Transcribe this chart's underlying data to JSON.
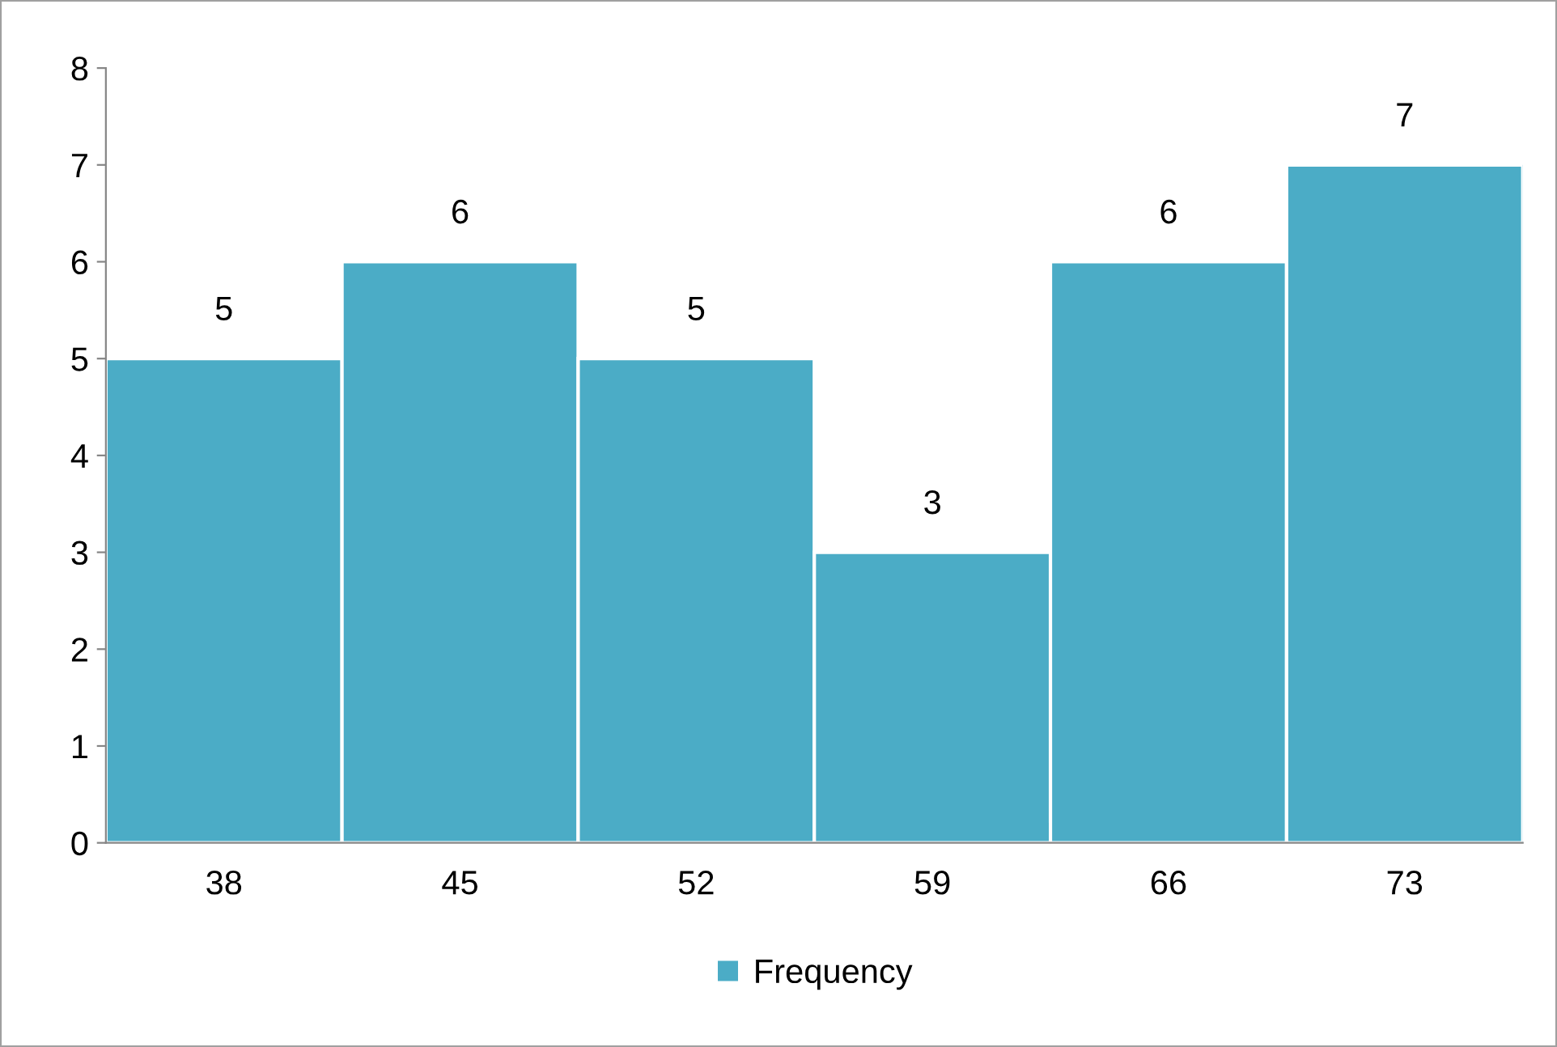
{
  "chart_data": {
    "type": "bar",
    "categories": [
      "38",
      "45",
      "52",
      "59",
      "66",
      "73"
    ],
    "series": [
      {
        "name": "Frequency",
        "color": "#4bacc6",
        "values": [
          5,
          6,
          5,
          3,
          6,
          7
        ]
      }
    ],
    "ylim": [
      0,
      8
    ],
    "yticks": [
      0,
      1,
      2,
      3,
      4,
      5,
      6,
      7,
      8
    ],
    "data_labels": true,
    "grid": false,
    "legend": "bottom"
  }
}
